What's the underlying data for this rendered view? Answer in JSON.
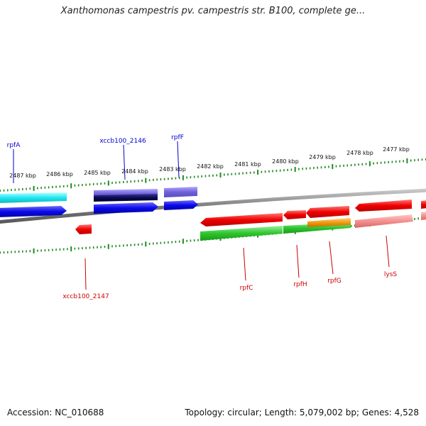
{
  "title": "Xanthomonas campestris pv. campestris str. B100, complete ge...",
  "footer": {
    "accession": "Accession: NC_010688",
    "topology": "Topology: circular; Length: 5,079,002 bp; Genes: 4,528"
  },
  "colors": {
    "backbone": "#8a8a8a",
    "tick": "#1f8a1f",
    "label_blue": "#0000cc",
    "label_red": "#cc0000"
  },
  "map": {
    "tick_labels": [
      "2487 kbp",
      "2486 kbp",
      "2485 kbp",
      "2484 kbp",
      "2483 kbp",
      "2482 kbp",
      "2481 kbp",
      "2480 kbp",
      "2479 kbp",
      "2478 kbp",
      "2477 kbp"
    ],
    "gene_labels": [
      "rpfA",
      "xccb100_2146",
      "rpfF",
      "xccb100_2147",
      "rpfC",
      "rpfH",
      "rpfG",
      "lysS"
    ]
  }
}
